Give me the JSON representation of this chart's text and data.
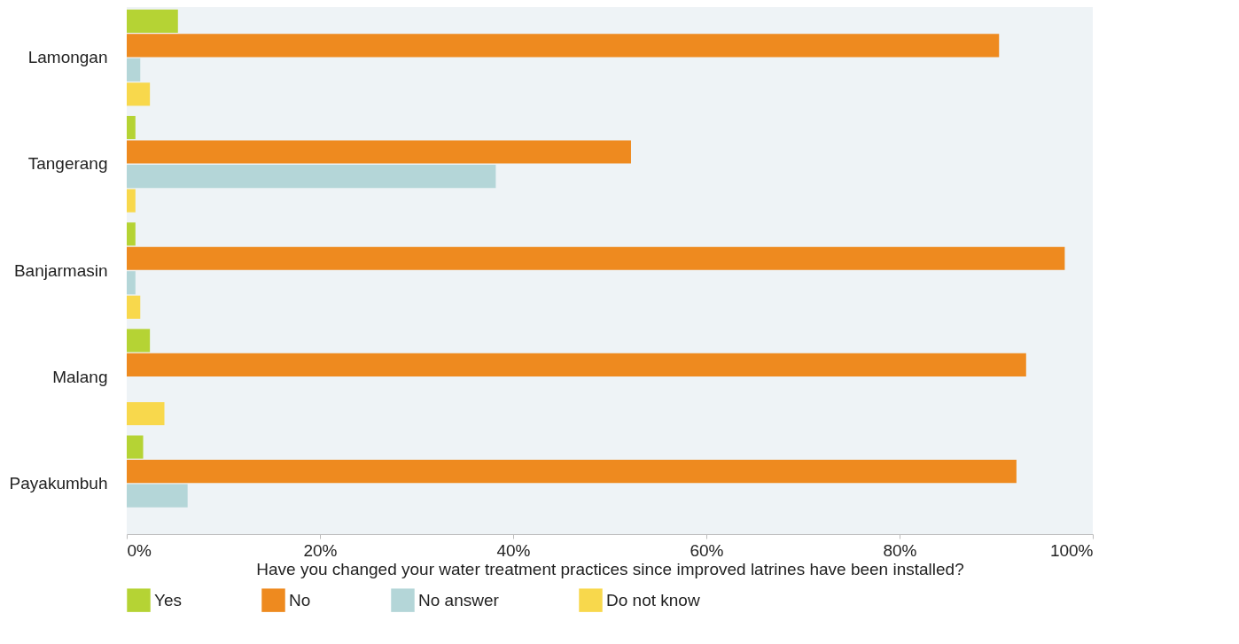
{
  "chart_data": {
    "type": "bar",
    "orientation": "horizontal",
    "xlabel": "Have you changed your water treatment practices since improved latrines have been installed?",
    "categories": [
      "Lamongan",
      "Tangerang",
      "Banjarmasin",
      "Malang",
      "Payakumbuh"
    ],
    "series": [
      {
        "name": "Yes",
        "color": "#b5d334",
        "values": [
          5.3,
          0.9,
          0.9,
          2.4,
          1.7
        ]
      },
      {
        "name": "No",
        "color": "#ee8a1f",
        "values": [
          90.3,
          52.2,
          97.1,
          93.1,
          92.1
        ]
      },
      {
        "name": "No answer",
        "color": "#b4d6d8",
        "values": [
          1.4,
          38.2,
          0.9,
          null,
          6.3
        ]
      },
      {
        "name": "Do not know",
        "color": "#f8d84c",
        "values": [
          2.4,
          0.9,
          1.4,
          3.9,
          null
        ]
      }
    ],
    "xlim": [
      0,
      100
    ],
    "xticks": [
      {
        "value": 0,
        "label": "0%"
      },
      {
        "value": 20,
        "label": "20%"
      },
      {
        "value": 40,
        "label": "40%"
      },
      {
        "value": 60,
        "label": "60%"
      },
      {
        "value": 80,
        "label": "80%"
      },
      {
        "value": 100,
        "label": "100%"
      }
    ],
    "grid": false,
    "legend": "bottom"
  }
}
